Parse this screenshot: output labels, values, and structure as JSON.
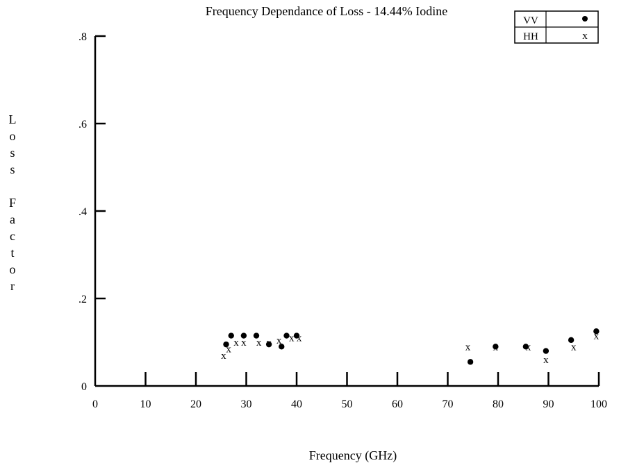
{
  "chart_data": {
    "type": "scatter",
    "title": "Frequency Dependance of Loss - 14.44% Iodine",
    "xlabel": "Frequency (GHz)",
    "ylabel": "Loss Factor",
    "xlim": [
      0,
      100
    ],
    "ylim": [
      0,
      0.8
    ],
    "x_ticks": [
      {
        "value": 0,
        "label": "0"
      },
      {
        "value": 10,
        "label": "10"
      },
      {
        "value": 20,
        "label": "20"
      },
      {
        "value": 30,
        "label": "30"
      },
      {
        "value": 40,
        "label": "40"
      },
      {
        "value": 50,
        "label": "50"
      },
      {
        "value": 60,
        "label": "60"
      },
      {
        "value": 70,
        "label": "70"
      },
      {
        "value": 80,
        "label": "80"
      },
      {
        "value": 90,
        "label": "90"
      },
      {
        "value": 100,
        "label": "100"
      }
    ],
    "y_ticks": [
      {
        "value": 0,
        "label": "0"
      },
      {
        "value": 0.2,
        "label": ".2"
      },
      {
        "value": 0.4,
        "label": ".4"
      },
      {
        "value": 0.6,
        "label": ".6"
      },
      {
        "value": 0.8,
        "label": ".8"
      }
    ],
    "grid": false,
    "legend_position": "top-right",
    "series": [
      {
        "name": "VV",
        "marker": "filled-circle",
        "legend_symbol": "•",
        "points": [
          {
            "x": 26,
            "y": 0.095
          },
          {
            "x": 27,
            "y": 0.115
          },
          {
            "x": 29.5,
            "y": 0.115
          },
          {
            "x": 32,
            "y": 0.115
          },
          {
            "x": 34.5,
            "y": 0.095
          },
          {
            "x": 37,
            "y": 0.09
          },
          {
            "x": 38,
            "y": 0.115
          },
          {
            "x": 40,
            "y": 0.115
          },
          {
            "x": 74.5,
            "y": 0.055
          },
          {
            "x": 79.5,
            "y": 0.09
          },
          {
            "x": 85.5,
            "y": 0.09
          },
          {
            "x": 89.5,
            "y": 0.08
          },
          {
            "x": 94.5,
            "y": 0.105
          },
          {
            "x": 99.5,
            "y": 0.125
          }
        ]
      },
      {
        "name": "HH",
        "marker": "x",
        "legend_symbol": "x",
        "points": [
          {
            "x": 25.5,
            "y": 0.07
          },
          {
            "x": 26.5,
            "y": 0.085
          },
          {
            "x": 28,
            "y": 0.1
          },
          {
            "x": 29.5,
            "y": 0.1
          },
          {
            "x": 32.5,
            "y": 0.1
          },
          {
            "x": 34.5,
            "y": 0.1
          },
          {
            "x": 36.5,
            "y": 0.105
          },
          {
            "x": 39,
            "y": 0.11
          },
          {
            "x": 40.5,
            "y": 0.11
          },
          {
            "x": 74,
            "y": 0.09
          },
          {
            "x": 79.5,
            "y": 0.09
          },
          {
            "x": 86,
            "y": 0.09
          },
          {
            "x": 89.5,
            "y": 0.06
          },
          {
            "x": 95,
            "y": 0.09
          },
          {
            "x": 99.5,
            "y": 0.115
          }
        ]
      }
    ]
  }
}
